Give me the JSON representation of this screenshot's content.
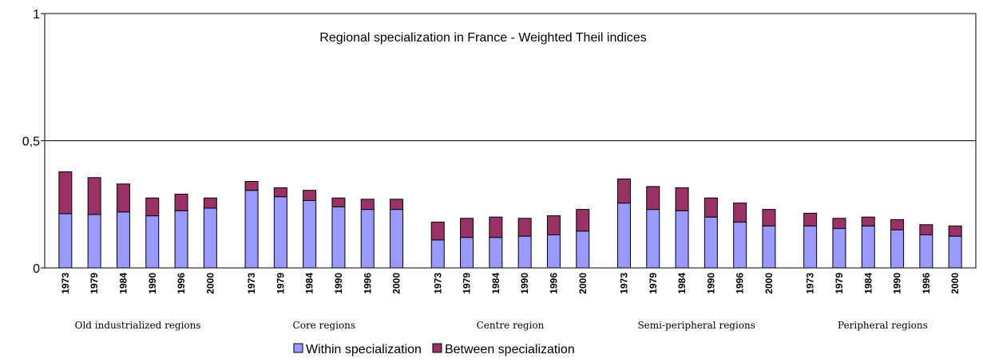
{
  "chart_data": {
    "type": "stacked_bar",
    "title": "Regional specialization in France - Weighted Theil indices",
    "categories": [
      "1973",
      "1979",
      "1984",
      "1990",
      "1996",
      "2000",
      "1973",
      "1979",
      "1984",
      "1990",
      "1996",
      "2000",
      "1973",
      "1979",
      "1984",
      "1990",
      "1996",
      "2000",
      "1973",
      "1979",
      "1984",
      "1990",
      "1996",
      "2000",
      "1973",
      "1979",
      "1984",
      "1990",
      "1996",
      "2000"
    ],
    "groups": [
      "Old industrialized regions",
      "Core regions",
      "Centre region",
      "Semi-peripheral regions",
      "Peripheral regions"
    ],
    "series": [
      {
        "name": "Within specialization",
        "color": "#9999ff",
        "values": [
          0.213,
          0.21,
          0.22,
          0.205,
          0.225,
          0.235,
          0.305,
          0.28,
          0.265,
          0.24,
          0.23,
          0.23,
          0.11,
          0.12,
          0.12,
          0.125,
          0.13,
          0.145,
          0.255,
          0.23,
          0.225,
          0.2,
          0.18,
          0.165,
          0.165,
          0.155,
          0.165,
          0.15,
          0.13,
          0.125
        ]
      },
      {
        "name": "Between specialization",
        "color": "#993366",
        "values": [
          0.165,
          0.145,
          0.11,
          0.07,
          0.065,
          0.04,
          0.035,
          0.035,
          0.04,
          0.035,
          0.04,
          0.04,
          0.07,
          0.075,
          0.08,
          0.07,
          0.075,
          0.085,
          0.095,
          0.09,
          0.09,
          0.075,
          0.075,
          0.065,
          0.05,
          0.04,
          0.035,
          0.04,
          0.04,
          0.04
        ]
      }
    ],
    "ylim": [
      0,
      1
    ],
    "yticks": [
      0,
      {
        "value": 0.5,
        "label": "0,5"
      },
      1
    ],
    "grid": true
  }
}
